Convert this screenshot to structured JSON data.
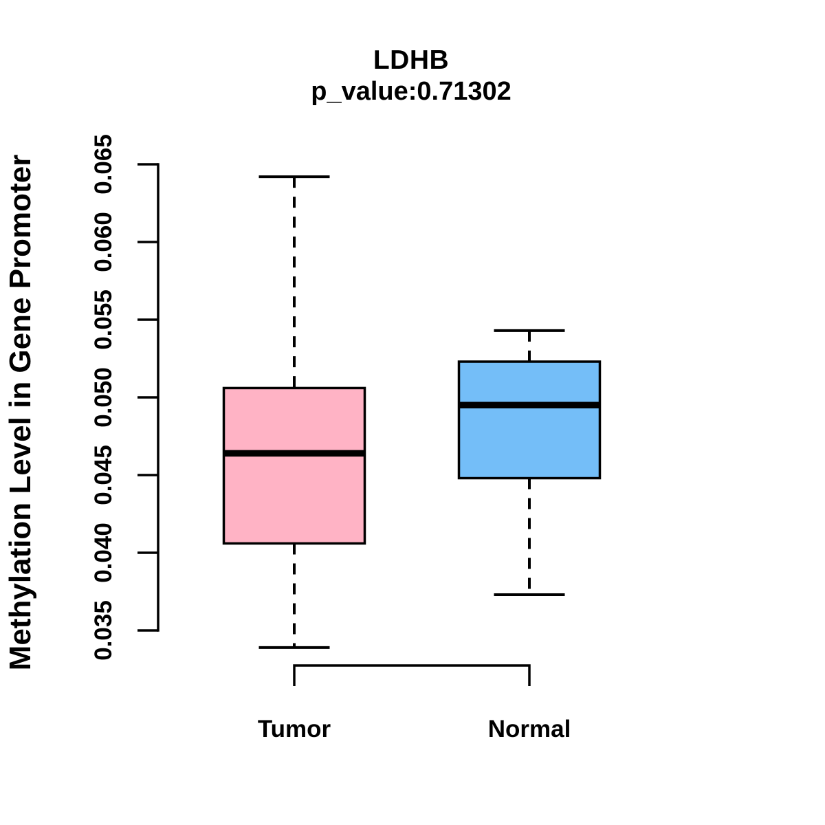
{
  "chart_data": {
    "type": "boxplot",
    "title": "LDHB",
    "subtitle": "p_value:0.71302",
    "ylabel": "Methylation Level in Gene Promoter",
    "xlabel": "",
    "categories": [
      "Tumor",
      "Normal"
    ],
    "y_tick_labels": [
      "0.035",
      "0.040",
      "0.045",
      "0.050",
      "0.055",
      "0.060",
      "0.065"
    ],
    "y_ticks": [
      0.035,
      0.04,
      0.045,
      0.05,
      0.055,
      0.06,
      0.065
    ],
    "ylim": [
      0.035,
      0.065
    ],
    "grid": false,
    "legend": "none",
    "line_color": "#000000",
    "series": [
      {
        "name": "Tumor",
        "fill_color": "#FFB3C5",
        "stats": {
          "whisker_low": 0.0339,
          "q1": 0.0406,
          "median": 0.0464,
          "q3": 0.0506,
          "whisker_high": 0.0642
        }
      },
      {
        "name": "Normal",
        "fill_color": "#74BEF8",
        "stats": {
          "whisker_low": 0.0373,
          "q1": 0.0448,
          "median": 0.0495,
          "q3": 0.0523,
          "whisker_high": 0.0543
        }
      }
    ]
  }
}
